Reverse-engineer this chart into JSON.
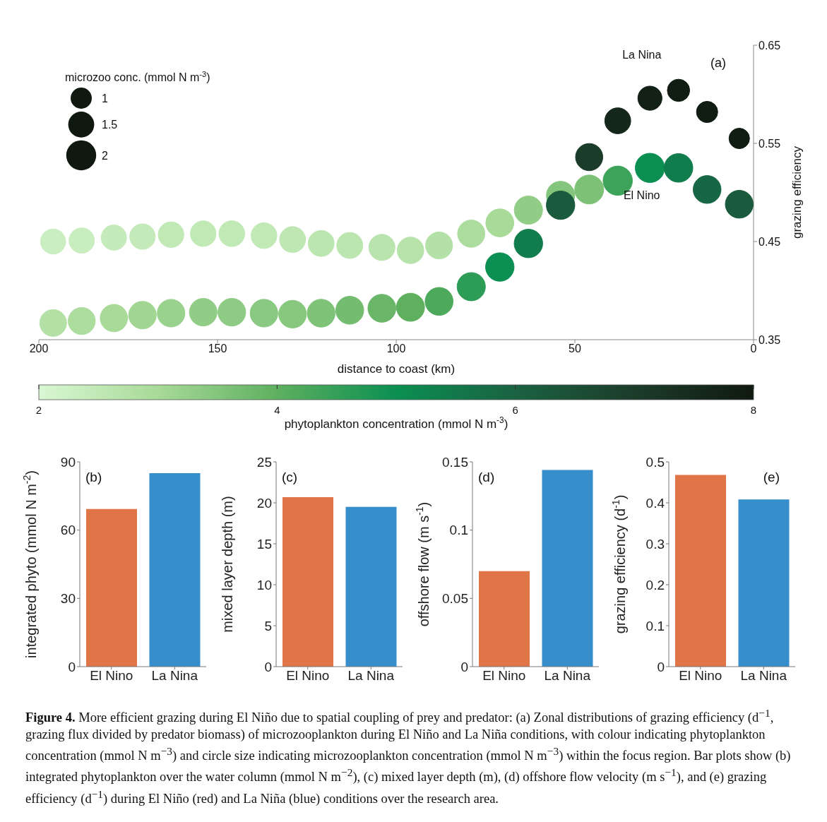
{
  "chart_data": [
    {
      "type": "bubble",
      "xlabel": "distance to coast (km)",
      "ylabel": "grazing efficiency",
      "legend_title": "microzoo conc. (mmol N m$^{-3}$)",
      "clabel": "phytoplankton concentration (mmol N m$^{-3}$)",
      "xlim": [
        200,
        0
      ],
      "xticks": [
        200,
        150,
        100,
        50,
        0
      ],
      "ylim": [
        0.35,
        0.65
      ],
      "yticks": [
        0.35,
        0.45,
        0.55,
        0.65
      ],
      "clim": [
        2,
        8
      ],
      "cticks": [
        2,
        4,
        6,
        8
      ],
      "size_legend": [
        1,
        1.5,
        2
      ],
      "grid": false,
      "x": [
        196,
        188,
        179,
        171,
        163,
        154,
        146,
        137,
        129,
        121,
        113,
        104,
        96,
        88,
        79,
        71,
        63,
        54,
        46,
        38,
        29,
        21,
        13,
        4
      ],
      "series": [
        {
          "name": "La Nina",
          "values": [
            0.45,
            0.451,
            0.454,
            0.455,
            0.457,
            0.458,
            0.458,
            0.456,
            0.452,
            0.448,
            0.446,
            0.444,
            0.441,
            0.446,
            0.458,
            0.469,
            0.482,
            0.497,
            0.536,
            0.573,
            0.596,
            0.604,
            0.582,
            0.555
          ],
          "sizes": [
            1.41,
            1.43,
            1.43,
            1.45,
            1.46,
            1.46,
            1.48,
            1.48,
            1.5,
            1.5,
            1.51,
            1.52,
            1.57,
            1.62,
            1.66,
            1.74,
            1.78,
            1.78,
            1.65,
            1.5,
            1.3,
            1.11,
            1.01,
            0.94
          ],
          "cvalues": [
            2.3,
            2.35,
            2.4,
            2.45,
            2.5,
            2.5,
            2.5,
            2.5,
            2.55,
            2.6,
            2.6,
            2.65,
            2.7,
            2.75,
            2.9,
            3.0,
            3.3,
            3.5,
            7.0,
            7.6,
            7.8,
            7.9,
            7.9,
            7.9
          ],
          "colors": [
            "#caeec1",
            "#c8edbe",
            "#c5ebbb",
            "#c3eab8",
            "#c1e9b6",
            "#c1e9b6",
            "#c1e9b6",
            "#c1e9b6",
            "#bee7b3",
            "#bce6b0",
            "#bce6b0",
            "#b9e4ad",
            "#b7e3aa",
            "#b4e1a8",
            "#addd9e",
            "#a8da98",
            "#92cd87",
            "#83c57c",
            "#1c3c2a",
            "#15271a",
            "#122015",
            "#111c12",
            "#111c12",
            "#111c12"
          ]
        },
        {
          "name": "El Nino",
          "values": [
            0.367,
            0.369,
            0.372,
            0.375,
            0.377,
            0.378,
            0.378,
            0.377,
            0.376,
            0.377,
            0.38,
            0.382,
            0.383,
            0.389,
            0.404,
            0.424,
            0.448,
            0.487,
            0.503,
            0.512,
            0.525,
            0.525,
            0.503,
            0.488
          ],
          "sizes": [
            1.6,
            1.64,
            1.67,
            1.7,
            1.7,
            1.7,
            1.71,
            1.71,
            1.71,
            1.73,
            1.74,
            1.74,
            1.76,
            1.74,
            1.78,
            1.81,
            1.81,
            1.81,
            1.87,
            1.91,
            1.91,
            1.83,
            1.73,
            1.73
          ],
          "cvalues": [
            2.8,
            2.9,
            3.0,
            3.1,
            3.2,
            3.3,
            3.35,
            3.4,
            3.45,
            3.55,
            3.7,
            3.85,
            4.0,
            4.2,
            4.6,
            5.0,
            5.4,
            6.2,
            3.6,
            4.4,
            5.0,
            5.4,
            5.9,
            6.2
          ],
          "colors": [
            "#b2e0a5",
            "#addd9e",
            "#a8da98",
            "#a1d692",
            "#99d28d",
            "#92cd87",
            "#8ecb84",
            "#8ac981",
            "#87c77e",
            "#7fc379",
            "#74bc70",
            "#69b668",
            "#5eb05f",
            "#4da95c",
            "#2c9c57",
            "#0b8f52",
            "#117d4c",
            "#1a5a3d",
            "#7cc176",
            "#3da35a",
            "#0b8f52",
            "#117d4c",
            "#186744",
            "#1a5a3d"
          ]
        }
      ],
      "annotations": [
        "(a)",
        "Figure 4. More efficient grazing during El Niño due to spatial coupling of prey and predator: (a) Zonal distributions of grazing efficiency (d$^{−1}$, grazing flux divided by predator biomass) of microzooplankton during El Niño and La Niña conditions, with colour indicating phytoplankton concentration (mmol N m$^{−3}$) and circle size indicating microzooplankton concentration (mmol N m$^{−3}$) within the focus region. Bar plots show (b) integrated phytoplankton over the water column (mmol N m$^{−2}$), (c) mixed layer depth (m), (d) offshore flow velocity (m s$^{−1}$), and (e) grazing efficiency (d$^{−1}$) during El Niño (red) and La Niña (blue) conditions over the research area."
      ]
    },
    {
      "type": "bar",
      "categories": [
        "El Nino",
        "La Nina"
      ],
      "values": [
        69.3,
        85.0
      ],
      "colors": [
        "#e07548",
        "#368ecb"
      ],
      "ylabel": "integrated phyto (mmol N m$^{-2}$)",
      "ylim": [
        0,
        90
      ],
      "yticks": [
        0,
        30,
        60,
        90
      ],
      "grid": false,
      "annotations": [
        "(b)"
      ]
    },
    {
      "type": "bar",
      "categories": [
        "El Nino",
        "La Nina"
      ],
      "values": [
        20.7,
        19.5
      ],
      "colors": [
        "#e07548",
        "#368ecb"
      ],
      "ylabel": "mixed layer depth (m)",
      "ylim": [
        0,
        25
      ],
      "yticks": [
        0,
        5,
        10,
        15,
        20,
        25
      ],
      "grid": false,
      "annotations": [
        "(c)"
      ]
    },
    {
      "type": "bar",
      "categories": [
        "El Nino",
        "La Nina"
      ],
      "values": [
        0.07,
        0.144
      ],
      "colors": [
        "#e07548",
        "#368ecb"
      ],
      "ylabel": "offshore flow (m s$^{-1}$)",
      "ylim": [
        0,
        0.15
      ],
      "yticks": [
        0,
        0.05,
        0.1,
        0.15
      ],
      "grid": false,
      "annotations": [
        "(d)"
      ]
    },
    {
      "type": "bar",
      "categories": [
        "El Nino",
        "La Nina"
      ],
      "values": [
        0.468,
        0.408
      ],
      "colors": [
        "#e07548",
        "#368ecb"
      ],
      "ylabel": "grazing efficiency (d$^{-1}$)",
      "ylim": [
        0,
        0.5
      ],
      "yticks": [
        0,
        0.1,
        0.2,
        0.3,
        0.4,
        0.5
      ],
      "grid": false,
      "annotations": [
        "(e)"
      ]
    }
  ]
}
